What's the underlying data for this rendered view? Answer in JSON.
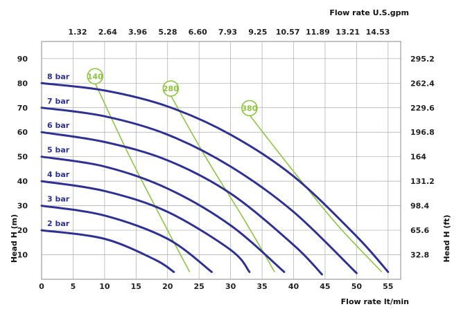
{
  "chart_data": {
    "type": "line",
    "xlabel": "Flow rate  lt/min",
    "ylabel": "Head H (m)",
    "x2label": "Flow rate U.S.gpm",
    "y2label": "Head H (ft)",
    "xlim": [
      0,
      57
    ],
    "ylim": [
      0,
      97
    ],
    "x_ticks": [
      "0",
      "5",
      "10",
      "15",
      "20",
      "25",
      "30",
      "35",
      "40",
      "45",
      "50",
      "55"
    ],
    "y_ticks": [
      "10",
      "20",
      "30",
      "40",
      "50",
      "60",
      "70",
      "80",
      "90"
    ],
    "x2_ticks": [
      "1.32",
      "2.64",
      "3.96",
      "5.28",
      "6.60",
      "7.93",
      "9.25",
      "10.57",
      "11.89",
      "13.21",
      "14.53"
    ],
    "y2_ticks": [
      "32.8",
      "65.6",
      "98.4",
      "131.2",
      "164",
      "196.8",
      "229.6",
      "262.4",
      "295.2"
    ],
    "grid": true,
    "colors": {
      "pressure": "#2e3192",
      "speed": "#8cc63f",
      "grid": "#aaaaaa"
    },
    "series": [
      {
        "name": "8 bar",
        "kind": "pressure",
        "points": [
          [
            0,
            80
          ],
          [
            10,
            77
          ],
          [
            20,
            70.5
          ],
          [
            30,
            59
          ],
          [
            40,
            42
          ],
          [
            50,
            17.5
          ],
          [
            55,
            3
          ]
        ]
      },
      {
        "name": "7 bar",
        "kind": "pressure",
        "points": [
          [
            0,
            70
          ],
          [
            10,
            66.5
          ],
          [
            20,
            59
          ],
          [
            30,
            46
          ],
          [
            40,
            27.5
          ],
          [
            50,
            2.5
          ]
        ]
      },
      {
        "name": "6 bar",
        "kind": "pressure",
        "points": [
          [
            0,
            60
          ],
          [
            10,
            56
          ],
          [
            20,
            48.5
          ],
          [
            30,
            35
          ],
          [
            40,
            14
          ],
          [
            44.5,
            2
          ]
        ]
      },
      {
        "name": "5 bar",
        "kind": "pressure",
        "points": [
          [
            0,
            50
          ],
          [
            10,
            46
          ],
          [
            20,
            37
          ],
          [
            30,
            22
          ],
          [
            38.5,
            3
          ]
        ]
      },
      {
        "name": "4 bar",
        "kind": "pressure",
        "points": [
          [
            0,
            40
          ],
          [
            10,
            36
          ],
          [
            20,
            27.5
          ],
          [
            30,
            12
          ],
          [
            33,
            3
          ]
        ]
      },
      {
        "name": "3 bar",
        "kind": "pressure",
        "points": [
          [
            0,
            30
          ],
          [
            10,
            26
          ],
          [
            20,
            16.5
          ],
          [
            27,
            3
          ]
        ]
      },
      {
        "name": "2 bar",
        "kind": "pressure",
        "points": [
          [
            0,
            20
          ],
          [
            10,
            16.5
          ],
          [
            18,
            8
          ],
          [
            21,
            3
          ]
        ]
      },
      {
        "name": "140",
        "kind": "speed",
        "points": [
          [
            8.5,
            80
          ],
          [
            14,
            50
          ],
          [
            20,
            20
          ],
          [
            23.5,
            3
          ]
        ]
      },
      {
        "name": "280",
        "kind": "speed",
        "points": [
          [
            20.5,
            75
          ],
          [
            26,
            50
          ],
          [
            32,
            25
          ],
          [
            37,
            3
          ]
        ]
      },
      {
        "name": "380",
        "kind": "speed",
        "points": [
          [
            33,
            67
          ],
          [
            40,
            44
          ],
          [
            47,
            22
          ],
          [
            54,
            3
          ]
        ]
      }
    ]
  }
}
